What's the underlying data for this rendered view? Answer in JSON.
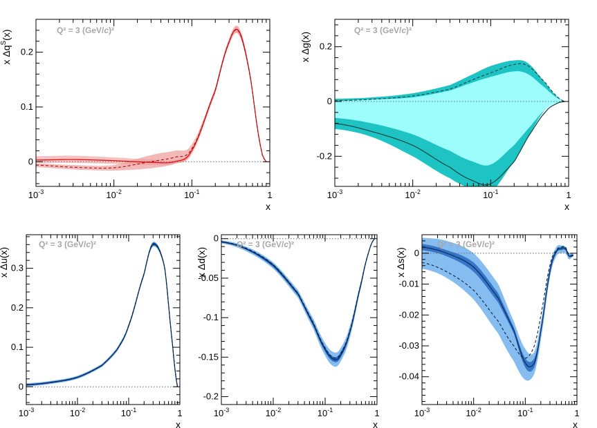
{
  "colors": {
    "red_line": "#dd1111",
    "red_band": "#f4b6b6",
    "red_band_dashed": "#ee9a9a",
    "cyan_outer": "#1ec4c4",
    "cyan_inner": "#9dfdfd",
    "cyan_line": "#1a4a4a",
    "blue_outer": "#86bdf0",
    "blue_inner": "#2c6ec2",
    "blue_line": "#0d2f66",
    "annotation": "#a7a7a7",
    "zero_line": "#666666"
  },
  "chart_data": [
    {
      "id": "dqs",
      "type": "line",
      "annotation": "Q² = 3 (GeV/c)²",
      "xlabel": "x",
      "ylabel": "x Δq^S(x)",
      "xscale": "log",
      "xlim": [
        0.001,
        1
      ],
      "ylim": [
        -0.045,
        0.26
      ],
      "xticks": [
        0.001,
        0.01,
        0.1,
        1
      ],
      "xtick_labels": [
        "10^-3",
        "10^-2",
        "10^-1",
        "1"
      ],
      "yticks": [
        0,
        0.1,
        0.2
      ],
      "ytick_labels": [
        "0",
        "0.1",
        "0.2"
      ],
      "bands": [
        {
          "name": "solid-band",
          "x": [
            0.001,
            0.003,
            0.01,
            0.03,
            0.06,
            0.1,
            0.2,
            0.3,
            0.4,
            0.55,
            0.75,
            0.9
          ],
          "lo": [
            -0.002,
            -0.002,
            -0.004,
            -0.006,
            -0.004,
            0.018,
            0.126,
            0.212,
            0.232,
            0.158,
            0.032,
            0.0
          ],
          "hi": [
            0.01,
            0.011,
            0.008,
            0.004,
            0.003,
            0.024,
            0.134,
            0.224,
            0.246,
            0.168,
            0.035,
            0.0
          ]
        },
        {
          "name": "dashed-band",
          "x": [
            0.001,
            0.003,
            0.01,
            0.03,
            0.06,
            0.1,
            0.2,
            0.3,
            0.4,
            0.55,
            0.75,
            0.9
          ],
          "lo": [
            -0.01,
            -0.014,
            -0.016,
            -0.012,
            -0.004,
            0.015,
            0.124,
            0.214,
            0.232,
            0.158,
            0.032,
            0.0
          ],
          "hi": [
            -0.003,
            -0.006,
            -0.006,
            0.012,
            0.02,
            0.032,
            0.134,
            0.222,
            0.244,
            0.166,
            0.034,
            0.0
          ]
        }
      ],
      "series": [
        {
          "name": "solid",
          "style": "solid",
          "x": [
            0.001,
            0.003,
            0.01,
            0.03,
            0.06,
            0.1,
            0.2,
            0.3,
            0.4,
            0.55,
            0.75,
            0.9
          ],
          "y": [
            0.003,
            0.004,
            0.002,
            -0.001,
            0.0,
            0.021,
            0.13,
            0.218,
            0.239,
            0.163,
            0.034,
            0.0
          ]
        },
        {
          "name": "dashed",
          "style": "dashed",
          "x": [
            0.001,
            0.003,
            0.01,
            0.03,
            0.06,
            0.1,
            0.2,
            0.3,
            0.4,
            0.55,
            0.75,
            0.9
          ],
          "y": [
            -0.006,
            -0.01,
            -0.011,
            0.0,
            0.008,
            0.024,
            0.129,
            0.218,
            0.238,
            0.162,
            0.033,
            0.0
          ]
        }
      ]
    },
    {
      "id": "dg",
      "type": "line",
      "annotation": "Q² = 3 (GeV/c)²",
      "xlabel": "x",
      "ylabel": "x Δg(x)",
      "xscale": "log",
      "xlim": [
        0.001,
        1
      ],
      "ylim": [
        -0.31,
        0.3
      ],
      "xticks": [
        0.001,
        0.01,
        0.1,
        1
      ],
      "xtick_labels": [
        "10^-3",
        "10^-2",
        "10^-1",
        "1"
      ],
      "yticks": [
        -0.2,
        0,
        0.2
      ],
      "ytick_labels": [
        "-0.2",
        "0",
        "0.2"
      ],
      "bands": [
        {
          "name": "outer-band",
          "x": [
            0.001,
            0.003,
            0.01,
            0.03,
            0.06,
            0.1,
            0.2,
            0.3,
            0.5,
            0.7,
            0.9
          ],
          "lo": [
            -0.1,
            -0.13,
            -0.2,
            -0.28,
            -0.32,
            -0.33,
            -0.22,
            -0.13,
            -0.03,
            -0.006,
            0.0
          ],
          "hi": [
            0.01,
            0.015,
            0.03,
            0.06,
            0.1,
            0.13,
            0.15,
            0.14,
            0.07,
            0.02,
            0.0
          ]
        },
        {
          "name": "inner-band",
          "x": [
            0.001,
            0.003,
            0.01,
            0.03,
            0.06,
            0.1,
            0.2,
            0.3,
            0.5,
            0.7,
            0.9
          ],
          "lo": [
            -0.06,
            -0.08,
            -0.12,
            -0.18,
            -0.22,
            -0.23,
            -0.16,
            -0.1,
            -0.03,
            -0.006,
            0.0
          ],
          "hi": [
            0.002,
            0.007,
            0.015,
            0.04,
            0.07,
            0.09,
            0.11,
            0.1,
            0.05,
            0.015,
            0.0
          ]
        }
      ],
      "series": [
        {
          "name": "solid",
          "style": "solid",
          "x": [
            0.001,
            0.003,
            0.01,
            0.03,
            0.06,
            0.1,
            0.2,
            0.3,
            0.5,
            0.7,
            0.9
          ],
          "y": [
            -0.08,
            -0.11,
            -0.16,
            -0.24,
            -0.29,
            -0.3,
            -0.22,
            -0.13,
            -0.04,
            -0.008,
            0.0
          ]
        },
        {
          "name": "dashed",
          "style": "dashed",
          "x": [
            0.001,
            0.003,
            0.01,
            0.03,
            0.06,
            0.1,
            0.2,
            0.3,
            0.5,
            0.7,
            0.9
          ],
          "y": [
            0.003,
            0.008,
            0.02,
            0.045,
            0.08,
            0.105,
            0.135,
            0.13,
            0.07,
            0.02,
            0.0
          ]
        }
      ]
    },
    {
      "id": "du",
      "type": "line",
      "annotation": "Q² = 3 (GeV/c)²",
      "xlabel": "x",
      "ylabel": "x Δu(x)",
      "xscale": "log",
      "xlim": [
        0.001,
        1
      ],
      "ylim": [
        -0.045,
        0.385
      ],
      "xticks": [
        0.001,
        0.01,
        0.1,
        1
      ],
      "xtick_labels": [
        "10^-3",
        "10^-2",
        "10^-1",
        "1"
      ],
      "yticks": [
        0,
        0.1,
        0.2,
        0.3
      ],
      "ytick_labels": [
        "0",
        "0.1",
        "0.2",
        "0.3"
      ],
      "bands": [
        {
          "name": "outer-band",
          "x": [
            0.001,
            0.003,
            0.01,
            0.03,
            0.06,
            0.1,
            0.2,
            0.3,
            0.5,
            0.7,
            0.9
          ],
          "lo": [
            0.001,
            0.007,
            0.02,
            0.05,
            0.09,
            0.15,
            0.28,
            0.355,
            0.3,
            0.12,
            0.0
          ],
          "hi": [
            0.009,
            0.015,
            0.028,
            0.058,
            0.1,
            0.16,
            0.29,
            0.367,
            0.31,
            0.125,
            0.0
          ]
        },
        {
          "name": "inner-band",
          "x": [
            0.001,
            0.003,
            0.01,
            0.03,
            0.06,
            0.1,
            0.2,
            0.3,
            0.5,
            0.7,
            0.9
          ],
          "lo": [
            0.003,
            0.009,
            0.022,
            0.052,
            0.093,
            0.152,
            0.282,
            0.357,
            0.302,
            0.121,
            0.0
          ],
          "hi": [
            0.007,
            0.013,
            0.026,
            0.056,
            0.097,
            0.158,
            0.288,
            0.365,
            0.308,
            0.124,
            0.0
          ]
        }
      ],
      "series": [
        {
          "name": "solid",
          "style": "solid",
          "x": [
            0.001,
            0.003,
            0.01,
            0.03,
            0.06,
            0.1,
            0.2,
            0.3,
            0.5,
            0.7,
            0.9
          ],
          "y": [
            0.005,
            0.011,
            0.024,
            0.054,
            0.095,
            0.155,
            0.285,
            0.361,
            0.305,
            0.122,
            0.0
          ]
        },
        {
          "name": "dashed",
          "style": "dashed",
          "x": [
            0.001,
            0.003,
            0.01,
            0.03,
            0.06,
            0.1,
            0.2,
            0.3,
            0.5,
            0.7,
            0.9
          ],
          "y": [
            0.005,
            0.011,
            0.024,
            0.054,
            0.095,
            0.156,
            0.286,
            0.362,
            0.306,
            0.122,
            0.0
          ]
        }
      ]
    },
    {
      "id": "dd",
      "type": "line",
      "annotation": "Q² = 3 (GeV/c)²",
      "xlabel": "x",
      "ylabel": "x Δd(x)",
      "xscale": "log",
      "xlim": [
        0.001,
        1
      ],
      "ylim": [
        -0.21,
        0.005
      ],
      "xticks": [
        0.001,
        0.01,
        0.1,
        1
      ],
      "xtick_labels": [
        "10^-3",
        "10^-2",
        "10^-1",
        "1"
      ],
      "yticks": [
        -0.2,
        -0.15,
        -0.1,
        -0.05,
        0
      ],
      "ytick_labels": [
        "-0.2",
        "-0.15",
        "-0.1",
        "-0.05",
        "0"
      ],
      "bands": [
        {
          "name": "outer-band",
          "x": [
            0.001,
            0.003,
            0.01,
            0.03,
            0.06,
            0.1,
            0.15,
            0.2,
            0.3,
            0.5,
            0.7,
            0.9
          ],
          "lo": [
            -0.006,
            -0.016,
            -0.038,
            -0.075,
            -0.115,
            -0.148,
            -0.162,
            -0.155,
            -0.125,
            -0.06,
            -0.018,
            0.0
          ],
          "hi": [
            -0.002,
            -0.01,
            -0.03,
            -0.065,
            -0.102,
            -0.132,
            -0.144,
            -0.138,
            -0.11,
            -0.052,
            -0.015,
            0.0
          ]
        },
        {
          "name": "inner-band",
          "x": [
            0.001,
            0.003,
            0.01,
            0.03,
            0.06,
            0.1,
            0.15,
            0.2,
            0.3,
            0.5,
            0.7,
            0.9
          ],
          "lo": [
            -0.005,
            -0.014,
            -0.036,
            -0.072,
            -0.111,
            -0.143,
            -0.156,
            -0.15,
            -0.12,
            -0.058,
            -0.017,
            0.0
          ],
          "hi": [
            -0.003,
            -0.012,
            -0.032,
            -0.068,
            -0.106,
            -0.137,
            -0.15,
            -0.143,
            -0.115,
            -0.054,
            -0.016,
            0.0
          ]
        }
      ],
      "series": [
        {
          "name": "solid",
          "style": "solid",
          "x": [
            0.001,
            0.003,
            0.01,
            0.03,
            0.06,
            0.1,
            0.15,
            0.2,
            0.3,
            0.5,
            0.7,
            0.9
          ],
          "y": [
            -0.004,
            -0.013,
            -0.034,
            -0.07,
            -0.109,
            -0.14,
            -0.153,
            -0.147,
            -0.118,
            -0.056,
            -0.016,
            0.0
          ]
        },
        {
          "name": "dashed",
          "style": "dashed",
          "x": [
            0.001,
            0.003,
            0.01,
            0.03,
            0.06,
            0.1,
            0.15,
            0.2,
            0.3,
            0.5,
            0.7,
            0.9
          ],
          "y": [
            -0.004,
            -0.012,
            -0.033,
            -0.069,
            -0.107,
            -0.138,
            -0.151,
            -0.145,
            -0.116,
            -0.055,
            -0.016,
            0.0
          ]
        }
      ]
    },
    {
      "id": "ds",
      "type": "line",
      "annotation": "Q² = 3 (GeV/c)²",
      "xlabel": "x",
      "ylabel": "x Δs(x)",
      "xscale": "log",
      "xlim": [
        0.001,
        1
      ],
      "ylim": [
        -0.049,
        0.006
      ],
      "xticks": [
        0.001,
        0.01,
        0.1,
        1
      ],
      "xtick_labels": [
        "10^-3",
        "10^-2",
        "10^-1",
        "1"
      ],
      "yticks": [
        -0.04,
        -0.03,
        -0.02,
        -0.01,
        0
      ],
      "ytick_labels": [
        "-0.04",
        "-0.03",
        "-0.02",
        "-0.01",
        "0"
      ],
      "bands": [
        {
          "name": "outer-band",
          "x": [
            0.001,
            0.003,
            0.01,
            0.03,
            0.06,
            0.1,
            0.15,
            0.2,
            0.3,
            0.4,
            0.5,
            0.6,
            0.7,
            0.85
          ],
          "lo": [
            -0.005,
            -0.008,
            -0.015,
            -0.026,
            -0.035,
            -0.041,
            -0.039,
            -0.028,
            -0.008,
            -0.001,
            0.0,
            0.0,
            -0.002,
            -0.001
          ],
          "hi": [
            0.005,
            0.004,
            0.0,
            -0.01,
            -0.022,
            -0.031,
            -0.032,
            -0.022,
            -0.004,
            0.002,
            0.0025,
            0.002,
            0.0,
            0.0
          ]
        },
        {
          "name": "inner-band",
          "x": [
            0.001,
            0.003,
            0.01,
            0.03,
            0.06,
            0.1,
            0.15,
            0.2,
            0.3,
            0.4,
            0.5,
            0.6,
            0.7,
            0.85
          ],
          "lo": [
            0.001,
            -0.001,
            -0.006,
            -0.016,
            -0.026,
            -0.037,
            -0.037,
            -0.026,
            -0.007,
            0.0,
            0.001,
            0.001,
            -0.001,
            -0.001
          ],
          "hi": [
            0.003,
            0.001,
            -0.003,
            -0.013,
            -0.024,
            -0.034,
            -0.034,
            -0.024,
            -0.005,
            0.001,
            0.002,
            0.002,
            -0.0005,
            -0.0005
          ]
        }
      ],
      "series": [
        {
          "name": "solid",
          "style": "solid",
          "x": [
            0.001,
            0.003,
            0.01,
            0.03,
            0.06,
            0.1,
            0.15,
            0.2,
            0.3,
            0.4,
            0.5,
            0.6,
            0.7,
            0.85
          ],
          "y": [
            0.002,
            0.0,
            -0.0045,
            -0.0145,
            -0.025,
            -0.0355,
            -0.0355,
            -0.025,
            -0.006,
            0.0005,
            0.0015,
            0.0015,
            -0.001,
            -0.0007
          ]
        },
        {
          "name": "dashed",
          "style": "dashed",
          "x": [
            0.001,
            0.003,
            0.01,
            0.03,
            0.06,
            0.1,
            0.15,
            0.2,
            0.3,
            0.4,
            0.5,
            0.6,
            0.7,
            0.85
          ],
          "y": [
            -0.003,
            -0.006,
            -0.012,
            -0.022,
            -0.03,
            -0.034,
            -0.03,
            -0.02,
            -0.004,
            0.001,
            0.002,
            0.002,
            -0.0005,
            -0.0005
          ]
        }
      ]
    }
  ]
}
